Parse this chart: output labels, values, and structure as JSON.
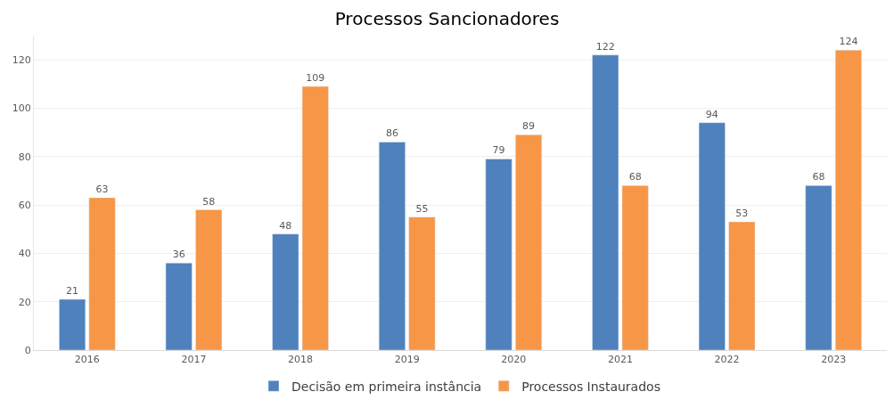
{
  "chart_data": {
    "type": "bar",
    "title": "Processos Sancionadores",
    "categories": [
      "2016",
      "2017",
      "2018",
      "2019",
      "2020",
      "2021",
      "2022",
      "2023"
    ],
    "series": [
      {
        "name": "Decisão em primeira instância",
        "color": "#4f81bd",
        "values": [
          21,
          36,
          48,
          86,
          79,
          122,
          94,
          68
        ]
      },
      {
        "name": "Processos Instaurados",
        "color": "#f79646",
        "values": [
          63,
          58,
          109,
          55,
          89,
          68,
          53,
          124
        ]
      }
    ],
    "ylim": [
      0,
      130
    ],
    "yticks": [
      0,
      20,
      40,
      60,
      80,
      100,
      120
    ],
    "grid": "y",
    "legend": "bottom",
    "data_labels": true
  }
}
